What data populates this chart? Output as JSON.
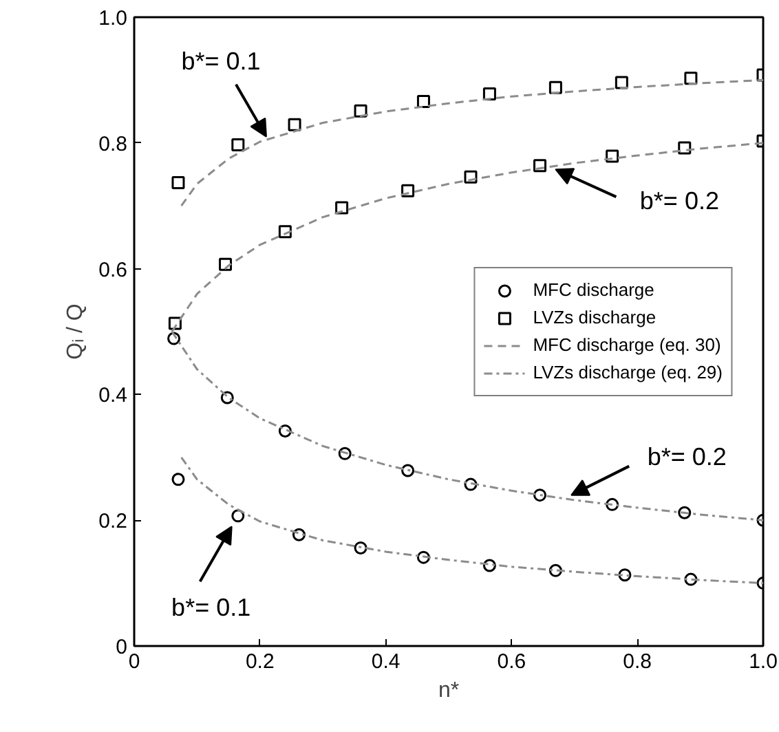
{
  "chart_data": {
    "type": "scatter",
    "xlabel": "n*",
    "ylabel": "Qᵢ / Q",
    "xlim": [
      0,
      1
    ],
    "ylim": [
      0,
      1
    ],
    "xticks": [
      0,
      0.2,
      0.4,
      0.6,
      0.8,
      {
        "value": 1,
        "label": "1.0"
      }
    ],
    "yticks": [
      0,
      0.2,
      0.4,
      0.6,
      0.8,
      {
        "value": 1,
        "label": "1.0"
      }
    ],
    "legend": "right",
    "series": [
      {
        "name": "MFC discharge",
        "marker": "circle",
        "color": "#000000",
        "x": [
          0.063,
          0.148,
          0.24,
          0.335,
          0.435,
          0.535,
          0.645,
          0.76,
          0.875,
          1.0
        ],
        "values": [
          0.489,
          0.395,
          0.342,
          0.306,
          0.279,
          0.257,
          0.24,
          0.225,
          0.212,
          0.2
        ]
      },
      {
        "marker": "circle",
        "color": "#000000",
        "x": [
          0.07,
          0.165,
          0.262,
          0.36,
          0.46,
          0.565,
          0.67,
          0.78,
          0.885,
          1.0
        ],
        "values": [
          0.265,
          0.207,
          0.177,
          0.156,
          0.141,
          0.128,
          0.12,
          0.113,
          0.106,
          0.1
        ]
      },
      {
        "name": "LVZs discharge",
        "marker": "square",
        "color": "#000000",
        "x": [
          0.07,
          0.165,
          0.255,
          0.36,
          0.46,
          0.565,
          0.67,
          0.775,
          0.885,
          1.0
        ],
        "values": [
          0.737,
          0.797,
          0.829,
          0.851,
          0.866,
          0.878,
          0.888,
          0.896,
          0.903,
          0.908
        ]
      },
      {
        "marker": "square",
        "color": "#000000",
        "x": [
          0.065,
          0.145,
          0.24,
          0.33,
          0.435,
          0.535,
          0.645,
          0.76,
          0.875,
          1.0
        ],
        "values": [
          0.513,
          0.607,
          0.659,
          0.697,
          0.724,
          0.746,
          0.764,
          0.779,
          0.792,
          0.803
        ]
      },
      {
        "name": "MFC discharge (eq. 30)",
        "type": "line",
        "line_style": "dashed",
        "color": "#8c8c8c",
        "x": [
          0.075,
          0.1,
          0.15,
          0.2,
          0.3,
          0.4,
          0.5,
          0.6,
          0.7,
          0.8,
          0.9,
          1.0
        ],
        "values": [
          0.7,
          0.735,
          0.775,
          0.802,
          0.832,
          0.85,
          0.863,
          0.874,
          0.882,
          0.889,
          0.895,
          0.9
        ]
      },
      {
        "type": "line",
        "line_style": "dashed",
        "color": "#8c8c8c",
        "x": [
          0.06,
          0.1,
          0.15,
          0.2,
          0.3,
          0.4,
          0.5,
          0.6,
          0.7,
          0.8,
          0.9,
          1.0
        ],
        "values": [
          0.5,
          0.56,
          0.605,
          0.638,
          0.682,
          0.712,
          0.735,
          0.753,
          0.768,
          0.78,
          0.791,
          0.8
        ]
      },
      {
        "name": "LVZs discharge (eq. 29)",
        "type": "line",
        "line_style": "dashdot",
        "color": "#8c8c8c",
        "x": [
          0.06,
          0.1,
          0.15,
          0.2,
          0.3,
          0.4,
          0.5,
          0.6,
          0.7,
          0.8,
          0.9,
          1.0
        ],
        "values": [
          0.5,
          0.44,
          0.395,
          0.362,
          0.318,
          0.288,
          0.265,
          0.247,
          0.232,
          0.22,
          0.209,
          0.2
        ]
      },
      {
        "type": "line",
        "line_style": "dashdot",
        "color": "#8c8c8c",
        "x": [
          0.075,
          0.1,
          0.15,
          0.2,
          0.3,
          0.4,
          0.5,
          0.6,
          0.7,
          0.8,
          0.9,
          1.0
        ],
        "values": [
          0.3,
          0.265,
          0.225,
          0.198,
          0.168,
          0.15,
          0.137,
          0.126,
          0.118,
          0.111,
          0.105,
          0.1
        ]
      }
    ],
    "annotations": [
      {
        "text": "b*= 0.1",
        "x": 0.21,
        "y": 0.81
      },
      {
        "text": "b*= 0.2",
        "x": 0.67,
        "y": 0.758
      },
      {
        "text": "b*= 0.2",
        "x": 0.695,
        "y": 0.24
      },
      {
        "text": "b*= 0.1",
        "x": 0.155,
        "y": 0.19
      }
    ]
  }
}
